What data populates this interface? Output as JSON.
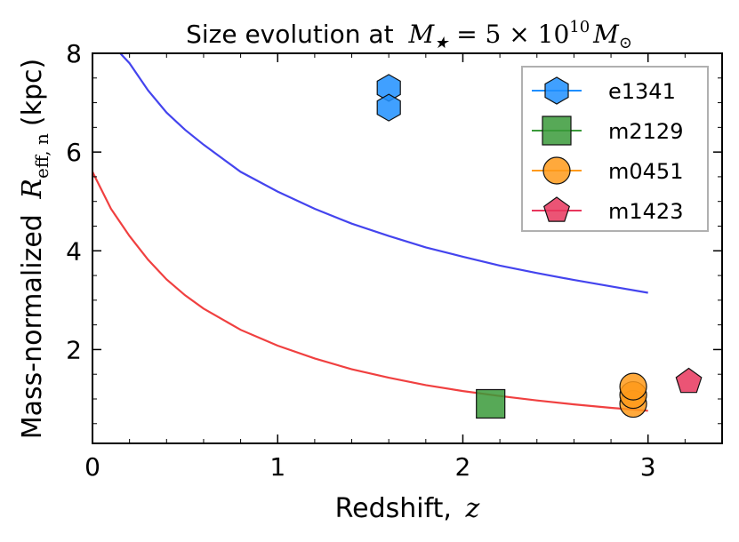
{
  "chart_data": {
    "type": "scatter",
    "title": "Size evolution at",
    "title_math": {
      "symbol": "M",
      "subscript": "★",
      "relation": " = 5 × 10",
      "exponent": "10",
      "symbol2": "M",
      "subscript2": "⊙"
    },
    "xlabel": "Redshift,",
    "xlabel_math": "z",
    "ylabel": "Mass-normalized",
    "ylabel_math": {
      "symbol": "R",
      "subscript": "eff, n"
    },
    "ylabel_units": "(kpc)",
    "xlim": [
      0,
      3.4
    ],
    "ylim": [
      0.1,
      8
    ],
    "x_ticks": [
      0,
      1,
      2,
      3
    ],
    "x_tick_labels": [
      "0",
      "1",
      "2",
      "3"
    ],
    "y_ticks": [
      2,
      4,
      6,
      8
    ],
    "y_tick_labels": [
      "2",
      "4",
      "6",
      "8"
    ],
    "legend_position": "top-right",
    "series": [
      {
        "name": "e1341",
        "marker": "hexagon",
        "color": "#1f8fff",
        "points": [
          {
            "x": 1.6,
            "y": 7.3
          },
          {
            "x": 1.6,
            "y": 6.9
          }
        ]
      },
      {
        "name": "m2129",
        "marker": "square",
        "color": "#3a9a3a",
        "points": [
          {
            "x": 2.15,
            "y": 0.9
          }
        ]
      },
      {
        "name": "m0451",
        "marker": "circle",
        "color": "#ff9a1a",
        "points": [
          {
            "x": 2.92,
            "y": 0.9
          },
          {
            "x": 2.92,
            "y": 1.08
          },
          {
            "x": 2.92,
            "y": 1.25
          }
        ]
      },
      {
        "name": "m1423",
        "marker": "pentagon",
        "color": "#e8365d",
        "points": [
          {
            "x": 3.22,
            "y": 1.35
          }
        ]
      }
    ],
    "curves": [
      {
        "name": "blue-model-curve",
        "color": "#4444ee",
        "x": [
          0.15,
          0.2,
          0.3,
          0.4,
          0.5,
          0.6,
          0.8,
          1.0,
          1.2,
          1.4,
          1.6,
          1.8,
          2.0,
          2.2,
          2.4,
          2.6,
          2.8,
          3.0
        ],
        "y": [
          8.0,
          7.8,
          7.25,
          6.8,
          6.45,
          6.15,
          5.6,
          5.2,
          4.85,
          4.55,
          4.3,
          4.07,
          3.88,
          3.7,
          3.55,
          3.41,
          3.28,
          3.15
        ]
      },
      {
        "name": "red-model-curve",
        "color": "#f04040",
        "x": [
          0.0,
          0.1,
          0.2,
          0.3,
          0.4,
          0.5,
          0.6,
          0.8,
          1.0,
          1.2,
          1.4,
          1.6,
          1.8,
          2.0,
          2.2,
          2.4,
          2.6,
          2.8,
          3.0
        ],
        "y": [
          5.6,
          4.85,
          4.3,
          3.82,
          3.42,
          3.1,
          2.83,
          2.4,
          2.08,
          1.82,
          1.6,
          1.43,
          1.28,
          1.16,
          1.06,
          0.97,
          0.89,
          0.82,
          0.76
        ]
      }
    ]
  }
}
